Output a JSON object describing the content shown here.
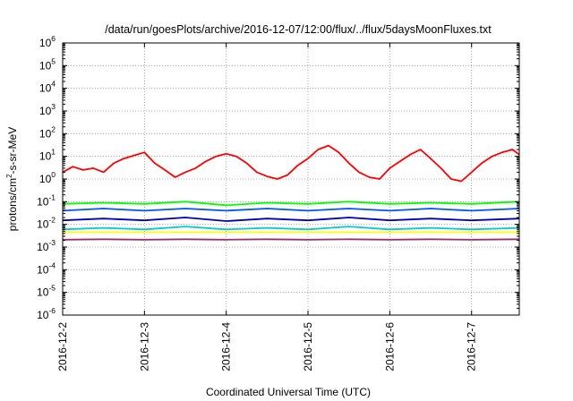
{
  "chart_data": {
    "type": "line",
    "title": "/data/run/goesPlots/archive/2016-12-07/12:00/flux/../flux/5daysMoonFluxes.txt",
    "xlabel": "Coordinated Universal Time (UTC)",
    "ylabel": {
      "prefix": "protons/cm",
      "superscript": "2",
      "suffix": "-s-sr-MeV"
    },
    "x_scale": "date",
    "xlim": [
      "2016-12-02",
      "2016-12-07T14:00"
    ],
    "x_ticks": [
      "2016-12-2",
      "2016-12-3",
      "2016-12-4",
      "2016-12-5",
      "2016-12-6",
      "2016-12-7"
    ],
    "y_scale": "log",
    "ylim": [
      1e-06,
      1000000.0
    ],
    "y_ticks": [
      {
        "base": "10",
        "exp": "6"
      },
      {
        "base": "10",
        "exp": "5"
      },
      {
        "base": "10",
        "exp": "4"
      },
      {
        "base": "10",
        "exp": "3"
      },
      {
        "base": "10",
        "exp": "2"
      },
      {
        "base": "10",
        "exp": "1"
      },
      {
        "base": "10",
        "exp": "0"
      },
      {
        "base": "10",
        "exp": "-1"
      },
      {
        "base": "10",
        "exp": "-2"
      },
      {
        "base": "10",
        "exp": "-3"
      },
      {
        "base": "10",
        "exp": "-4"
      },
      {
        "base": "10",
        "exp": "-5"
      },
      {
        "base": "10",
        "exp": "-6"
      }
    ],
    "grid": true,
    "series": [
      {
        "color": "#ff0000",
        "x": [
          "2016-12-02T00:00",
          "2016-12-02T03:00",
          "2016-12-02T06:00",
          "2016-12-02T09:00",
          "2016-12-02T12:00",
          "2016-12-02T15:00",
          "2016-12-02T18:00",
          "2016-12-02T21:00",
          "2016-12-03T00:00",
          "2016-12-03T03:00",
          "2016-12-03T06:00",
          "2016-12-03T09:00",
          "2016-12-03T12:00",
          "2016-12-03T15:00",
          "2016-12-03T18:00",
          "2016-12-03T21:00",
          "2016-12-04T00:00",
          "2016-12-04T03:00",
          "2016-12-04T06:00",
          "2016-12-04T09:00",
          "2016-12-04T12:00",
          "2016-12-04T15:00",
          "2016-12-04T18:00",
          "2016-12-04T21:00",
          "2016-12-05T00:00",
          "2016-12-05T03:00",
          "2016-12-05T06:00",
          "2016-12-05T09:00",
          "2016-12-05T12:00",
          "2016-12-05T15:00",
          "2016-12-05T18:00",
          "2016-12-05T21:00",
          "2016-12-06T00:00",
          "2016-12-06T03:00",
          "2016-12-06T06:00",
          "2016-12-06T09:00",
          "2016-12-06T12:00",
          "2016-12-06T15:00",
          "2016-12-06T18:00",
          "2016-12-06T21:00",
          "2016-12-07T00:00",
          "2016-12-07T03:00",
          "2016-12-07T06:00",
          "2016-12-07T09:00",
          "2016-12-07T12:00",
          "2016-12-07T14:00"
        ],
        "y": [
          2.0,
          3.5,
          2.5,
          3.0,
          2.0,
          5.0,
          8.0,
          11,
          15,
          5.0,
          2.5,
          1.2,
          2.0,
          3.0,
          6.0,
          10,
          13,
          10,
          5.0,
          2.0,
          1.3,
          1.0,
          1.5,
          4.0,
          8.0,
          20,
          30,
          15,
          5.0,
          2.0,
          1.2,
          1.0,
          3.0,
          6.0,
          12,
          20,
          8.0,
          3.0,
          1.0,
          0.8,
          2.0,
          5.0,
          10,
          15,
          20,
          12
        ]
      },
      {
        "color": "#00ff00",
        "x": [
          "2016-12-02T00:00",
          "2016-12-02T12:00",
          "2016-12-03T00:00",
          "2016-12-03T12:00",
          "2016-12-04T00:00",
          "2016-12-04T12:00",
          "2016-12-05T00:00",
          "2016-12-05T12:00",
          "2016-12-06T00:00",
          "2016-12-06T12:00",
          "2016-12-07T00:00",
          "2016-12-07T14:00"
        ],
        "y": [
          0.08,
          0.09,
          0.08,
          0.1,
          0.07,
          0.09,
          0.08,
          0.1,
          0.08,
          0.09,
          0.08,
          0.1
        ]
      },
      {
        "color": "#00cccc",
        "x": [
          "2016-12-02T00:00",
          "2016-12-02T12:00",
          "2016-12-03T00:00",
          "2016-12-03T12:00",
          "2016-12-04T00:00",
          "2016-12-04T12:00",
          "2016-12-05T00:00",
          "2016-12-05T12:00",
          "2016-12-06T00:00",
          "2016-12-06T12:00",
          "2016-12-07T00:00",
          "2016-12-07T14:00"
        ],
        "y": [
          0.006,
          0.007,
          0.006,
          0.008,
          0.006,
          0.007,
          0.006,
          0.008,
          0.006,
          0.007,
          0.006,
          0.007
        ]
      },
      {
        "color": "#0055ff",
        "x": [
          "2016-12-02T00:00",
          "2016-12-02T12:00",
          "2016-12-03T00:00",
          "2016-12-03T12:00",
          "2016-12-04T00:00",
          "2016-12-04T12:00",
          "2016-12-05T00:00",
          "2016-12-05T12:00",
          "2016-12-06T00:00",
          "2016-12-06T12:00",
          "2016-12-07T00:00",
          "2016-12-07T14:00"
        ],
        "y": [
          0.04,
          0.05,
          0.04,
          0.05,
          0.04,
          0.05,
          0.04,
          0.05,
          0.04,
          0.05,
          0.04,
          0.05
        ]
      },
      {
        "color": "#0000bb",
        "x": [
          "2016-12-02T00:00",
          "2016-12-02T12:00",
          "2016-12-03T00:00",
          "2016-12-03T12:00",
          "2016-12-04T00:00",
          "2016-12-04T12:00",
          "2016-12-05T00:00",
          "2016-12-05T12:00",
          "2016-12-06T00:00",
          "2016-12-06T12:00",
          "2016-12-07T00:00",
          "2016-12-07T14:00"
        ],
        "y": [
          0.015,
          0.018,
          0.015,
          0.02,
          0.014,
          0.018,
          0.015,
          0.02,
          0.015,
          0.018,
          0.015,
          0.018
        ]
      },
      {
        "color": "#ffff00",
        "x": [
          "2016-12-02T00:00",
          "2016-12-02T12:00",
          "2016-12-03T00:00",
          "2016-12-03T12:00",
          "2016-12-04T00:00",
          "2016-12-04T12:00",
          "2016-12-05T00:00",
          "2016-12-05T12:00",
          "2016-12-06T00:00",
          "2016-12-06T12:00",
          "2016-12-07T00:00",
          "2016-12-07T14:00"
        ],
        "y": [
          0.0045,
          0.0045,
          0.0045,
          0.0045,
          0.0045,
          0.0045,
          0.0045,
          0.0045,
          0.0045,
          0.0045,
          0.0045,
          0.0045
        ]
      },
      {
        "color": "#993366",
        "x": [
          "2016-12-02T00:00",
          "2016-12-02T12:00",
          "2016-12-03T00:00",
          "2016-12-03T12:00",
          "2016-12-04T00:00",
          "2016-12-04T12:00",
          "2016-12-05T00:00",
          "2016-12-05T12:00",
          "2016-12-06T00:00",
          "2016-12-06T12:00",
          "2016-12-07T00:00",
          "2016-12-07T14:00"
        ],
        "y": [
          0.0021,
          0.0022,
          0.0021,
          0.0022,
          0.0021,
          0.0022,
          0.0021,
          0.0022,
          0.0021,
          0.0022,
          0.0021,
          0.0022
        ]
      }
    ]
  }
}
